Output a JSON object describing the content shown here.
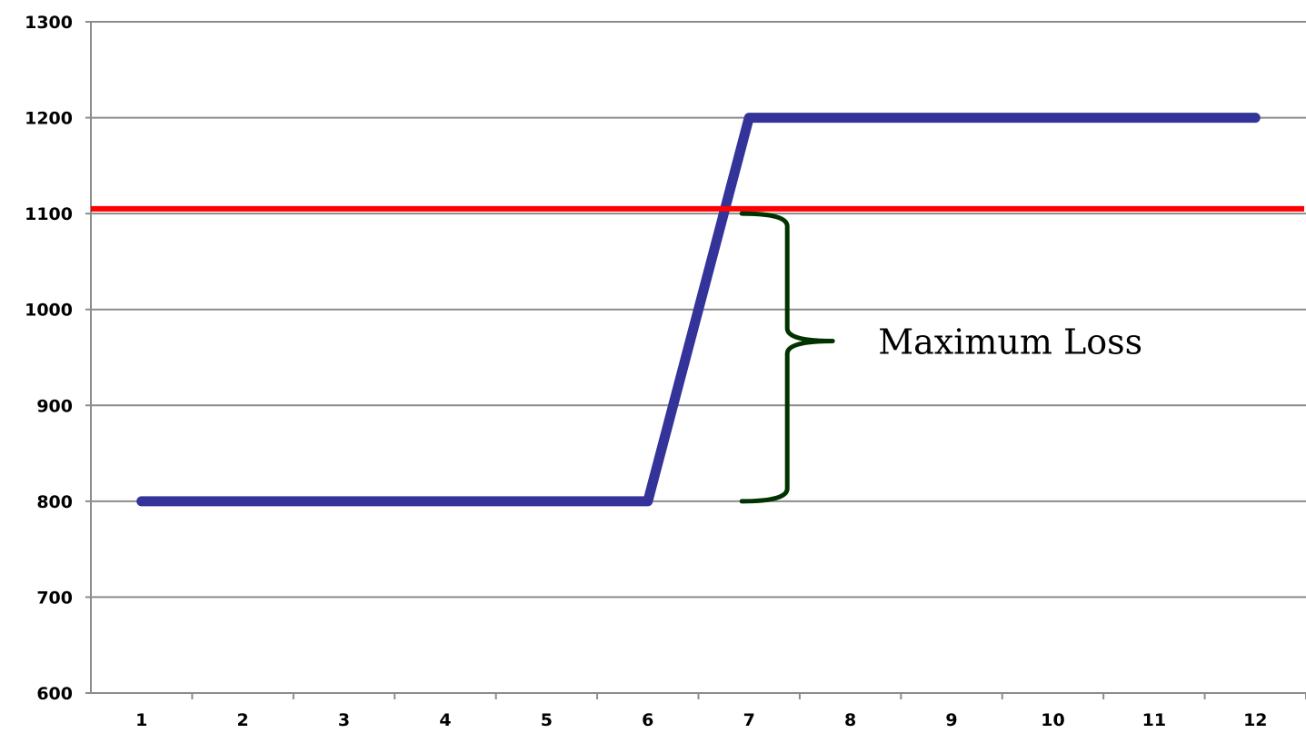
{
  "chart_data": {
    "type": "line",
    "title": "",
    "xlabel": "",
    "ylabel": "",
    "categories": [
      "1",
      "2",
      "3",
      "4",
      "5",
      "6",
      "7",
      "8",
      "9",
      "10",
      "11",
      "12"
    ],
    "x": [
      1,
      2,
      3,
      4,
      5,
      6,
      7,
      8,
      9,
      10,
      11,
      12
    ],
    "series": [
      {
        "color": "#333399",
        "values": [
          800,
          800,
          800,
          800,
          800,
          800,
          1200,
          1200,
          1200,
          1200,
          1200,
          1200
        ]
      }
    ],
    "reference_lines": [
      {
        "axis": "y",
        "value": 1105,
        "color": "#ff0000"
      }
    ],
    "ylim": [
      600,
      1300
    ],
    "yticks": [
      600,
      700,
      800,
      900,
      1000,
      1100,
      1200,
      1300
    ],
    "ytick_labels": [
      "600",
      "700",
      "800",
      "900",
      "1000",
      "1100",
      "1200",
      "1300"
    ],
    "grid": "horizontal",
    "legend": "none",
    "annotations": [
      {
        "type": "brace",
        "from_y": 800,
        "to_y": 1100,
        "at_x": 7,
        "color": "#003300",
        "text": "Maximum Loss"
      }
    ]
  }
}
